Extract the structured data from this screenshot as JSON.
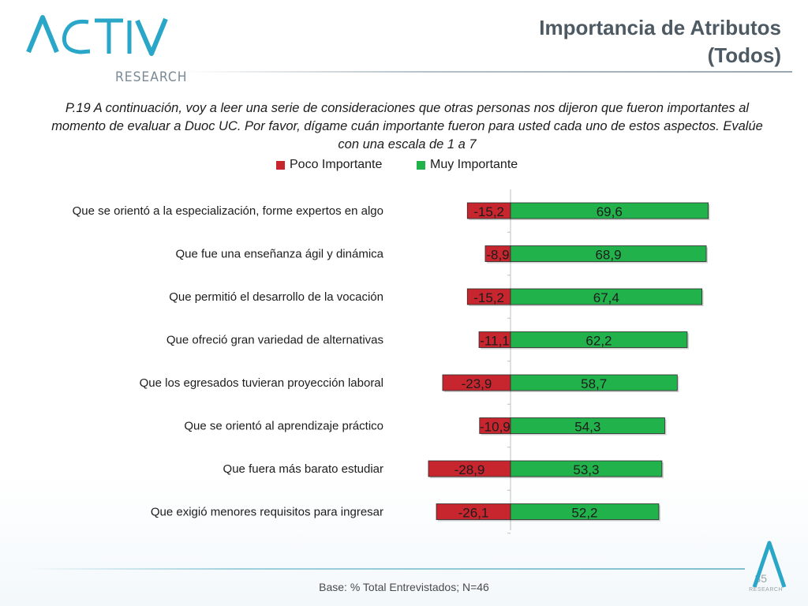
{
  "logo": {
    "wordmark": "ACTIVA",
    "sub": "RESEARCH"
  },
  "title": {
    "line1": "Importancia de Atributos",
    "line2": "(Todos)"
  },
  "question": "P.19 A continuación, voy a leer una serie de consideraciones que otras personas nos dijeron que fueron importantes al momento de evaluar a Duoc UC. Por favor, dígame cuán importante fueron para usted cada uno de estos aspectos. Evalúe con una escala de 1 a 7",
  "colors": {
    "negative": "#c8262e",
    "positive": "#22b24c",
    "bar_outline": "#2b2b2b",
    "accent": "#2aa7c8"
  },
  "chart_data": {
    "type": "bar",
    "orientation": "horizontal",
    "stacked": "diverging",
    "categories": [
      "Que se orientó a la especialización, forme expertos en algo",
      "Que fue una  enseñanza ágil y dinámica",
      "Que permitió el desarrollo de la vocación",
      "Que ofreció  gran variedad de alternativas",
      "Que los egresados tuvieran proyección laboral",
      "Que se orientó al aprendizaje práctico",
      "Que fuera más barato estudiar",
      "Que exigió menores requisitos para ingresar"
    ],
    "series": [
      {
        "name": "Poco Importante",
        "color": "#c8262e",
        "values": [
          -15.2,
          -8.9,
          -15.2,
          -11.1,
          -23.9,
          -10.9,
          -28.9,
          -26.1
        ],
        "labels": [
          "-15,2",
          "-8,9",
          "-15,2",
          "-11,1",
          "-23,9",
          "-10,9",
          "-28,9",
          "-26,1"
        ]
      },
      {
        "name": "Muy Importante",
        "color": "#22b24c",
        "values": [
          69.6,
          68.9,
          67.4,
          62.2,
          58.7,
          54.3,
          53.3,
          52.2
        ],
        "labels": [
          "69,6",
          "68,9",
          "67,4",
          "62,2",
          "58,7",
          "54,3",
          "53,3",
          "52,2"
        ]
      }
    ],
    "legend_position": "top",
    "grid": false
  },
  "footer": {
    "base": "Base: % Total Entrevistados; N=46",
    "page": "35",
    "mini_logo_text": "RESEARCH"
  }
}
